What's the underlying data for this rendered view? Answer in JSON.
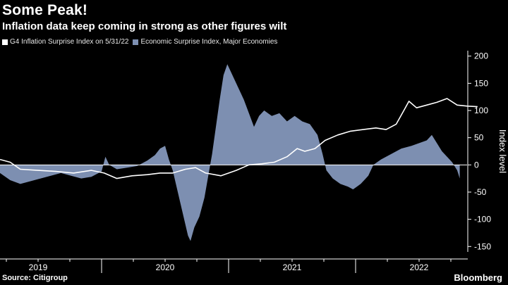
{
  "header": {
    "title": "Some Peak!",
    "subtitle": "Inflation data keep coming in strong as other figures wilt"
  },
  "legend": {
    "items": [
      {
        "label": "G4 Inflation Surprise Index  on 5/31/22",
        "color": "#ffffff"
      },
      {
        "label": "Economic Surprise Index, Major Economies",
        "color": "#7d8fb1"
      }
    ]
  },
  "footer": {
    "source": "Source: Citigroup",
    "brand": "Bloomberg"
  },
  "colors": {
    "background": "#000000",
    "area": "#7d8fb1",
    "line": "#ffffff",
    "axis": "#ffffff"
  },
  "chart_data": {
    "type": "area",
    "ylabel": "Index level",
    "ylim": [
      -160,
      210
    ],
    "yticks": [
      -150,
      -100,
      -50,
      0,
      50,
      100,
      150,
      200
    ],
    "ytick_labels": [
      "-150",
      "-100",
      "-50",
      "0",
      "50",
      "100",
      "150",
      "200"
    ],
    "x_range": [
      2018.7,
      2022.6
    ],
    "year_labels": [
      {
        "label": "2019",
        "x": 2019.0
      },
      {
        "label": "2020",
        "x": 2020.0
      },
      {
        "label": "2021",
        "x": 2021.0
      },
      {
        "label": "2022",
        "x": 2022.0
      }
    ],
    "year_boundaries": [
      2018.5,
      2019.5,
      2020.5,
      2021.5
    ],
    "series": [
      {
        "name": "Economic Surprise Index, Major Economies",
        "kind": "area",
        "points": [
          [
            2018.7,
            -15
          ],
          [
            2018.78,
            -28
          ],
          [
            2018.86,
            -35
          ],
          [
            2018.94,
            -30
          ],
          [
            2019.02,
            -25
          ],
          [
            2019.1,
            -20
          ],
          [
            2019.18,
            -15
          ],
          [
            2019.26,
            -20
          ],
          [
            2019.34,
            -25
          ],
          [
            2019.42,
            -22
          ],
          [
            2019.5,
            -12
          ],
          [
            2019.53,
            15
          ],
          [
            2019.56,
            0
          ],
          [
            2019.62,
            -8
          ],
          [
            2019.7,
            -5
          ],
          [
            2019.78,
            -2
          ],
          [
            2019.86,
            8
          ],
          [
            2019.92,
            18
          ],
          [
            2019.96,
            30
          ],
          [
            2020.0,
            35
          ],
          [
            2020.03,
            10
          ],
          [
            2020.06,
            -10
          ],
          [
            2020.1,
            -50
          ],
          [
            2020.14,
            -90
          ],
          [
            2020.18,
            -130
          ],
          [
            2020.2,
            -140
          ],
          [
            2020.23,
            -115
          ],
          [
            2020.27,
            -95
          ],
          [
            2020.31,
            -60
          ],
          [
            2020.34,
            -20
          ],
          [
            2020.37,
            20
          ],
          [
            2020.4,
            70
          ],
          [
            2020.43,
            120
          ],
          [
            2020.46,
            165
          ],
          [
            2020.49,
            185
          ],
          [
            2020.52,
            170
          ],
          [
            2020.55,
            155
          ],
          [
            2020.58,
            140
          ],
          [
            2020.62,
            120
          ],
          [
            2020.66,
            95
          ],
          [
            2020.7,
            70
          ],
          [
            2020.74,
            90
          ],
          [
            2020.78,
            100
          ],
          [
            2020.84,
            90
          ],
          [
            2020.9,
            95
          ],
          [
            2020.96,
            80
          ],
          [
            2021.02,
            90
          ],
          [
            2021.08,
            80
          ],
          [
            2021.14,
            75
          ],
          [
            2021.2,
            55
          ],
          [
            2021.24,
            20
          ],
          [
            2021.27,
            -10
          ],
          [
            2021.32,
            -25
          ],
          [
            2021.38,
            -35
          ],
          [
            2021.44,
            -40
          ],
          [
            2021.48,
            -45
          ],
          [
            2021.54,
            -35
          ],
          [
            2021.6,
            -20
          ],
          [
            2021.64,
            0
          ],
          [
            2021.7,
            10
          ],
          [
            2021.78,
            20
          ],
          [
            2021.86,
            30
          ],
          [
            2021.94,
            35
          ],
          [
            2022.0,
            40
          ],
          [
            2022.06,
            45
          ],
          [
            2022.1,
            55
          ],
          [
            2022.14,
            40
          ],
          [
            2022.18,
            25
          ],
          [
            2022.22,
            15
          ],
          [
            2022.26,
            5
          ],
          [
            2022.3,
            -10
          ],
          [
            2022.32,
            -25
          ]
        ]
      },
      {
        "name": "G4 Inflation Surprise Index  on 5/31/22",
        "kind": "line",
        "points": [
          [
            2018.7,
            10
          ],
          [
            2018.78,
            5
          ],
          [
            2018.86,
            -8
          ],
          [
            2019.0,
            -10
          ],
          [
            2019.14,
            -12
          ],
          [
            2019.28,
            -15
          ],
          [
            2019.42,
            -10
          ],
          [
            2019.52,
            -15
          ],
          [
            2019.62,
            -25
          ],
          [
            2019.74,
            -20
          ],
          [
            2019.86,
            -18
          ],
          [
            2019.96,
            -15
          ],
          [
            2020.06,
            -15
          ],
          [
            2020.16,
            -8
          ],
          [
            2020.24,
            -5
          ],
          [
            2020.32,
            -15
          ],
          [
            2020.44,
            -20
          ],
          [
            2020.56,
            -10
          ],
          [
            2020.66,
            0
          ],
          [
            2020.76,
            2
          ],
          [
            2020.86,
            5
          ],
          [
            2020.96,
            15
          ],
          [
            2021.04,
            30
          ],
          [
            2021.1,
            25
          ],
          [
            2021.18,
            30
          ],
          [
            2021.26,
            45
          ],
          [
            2021.36,
            55
          ],
          [
            2021.46,
            62
          ],
          [
            2021.56,
            65
          ],
          [
            2021.66,
            68
          ],
          [
            2021.74,
            65
          ],
          [
            2021.82,
            75
          ],
          [
            2021.88,
            100
          ],
          [
            2021.92,
            117
          ],
          [
            2021.98,
            105
          ],
          [
            2022.06,
            110
          ],
          [
            2022.14,
            115
          ],
          [
            2022.22,
            122
          ],
          [
            2022.3,
            110
          ],
          [
            2022.38,
            108
          ],
          [
            2022.46,
            107
          ]
        ]
      }
    ]
  }
}
